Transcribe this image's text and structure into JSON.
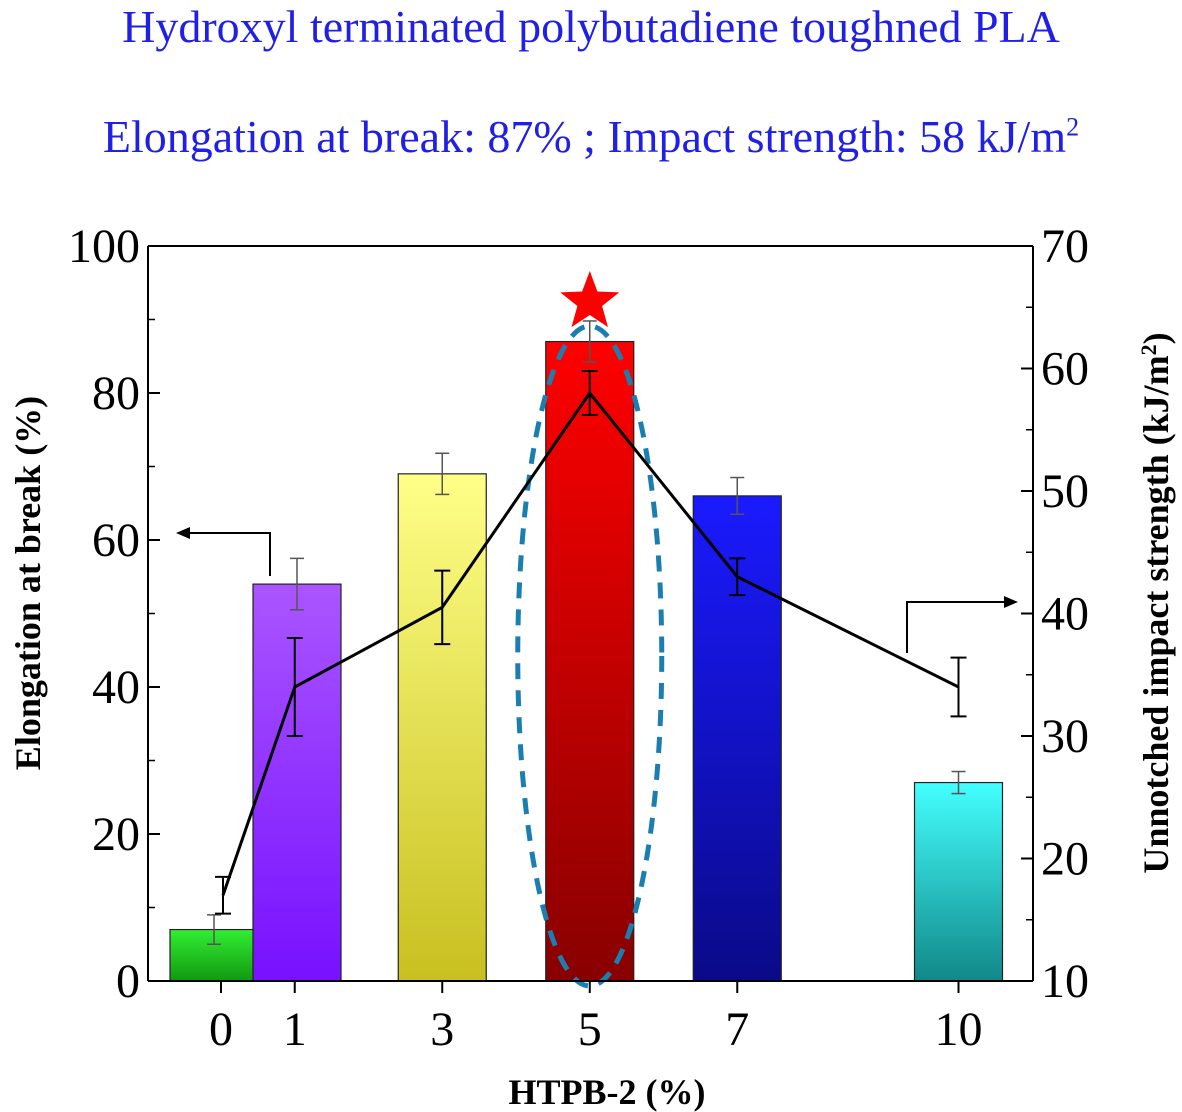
{
  "header": {
    "title": "Hydroxyl terminated polybutadiene toughned PLA",
    "subtitle_main": "Elongation at break: 87% ; Impact strength: 58 kJ/m",
    "subtitle_sup": "2"
  },
  "chart_data": {
    "type": "bar",
    "title": "",
    "xlabel": "HTPB-2 (%)",
    "ylabel": "Elongation at break (%)",
    "y2label": "Unnotched impact strength (kJ/m",
    "y2label_sup": "2",
    "y2label_end": ")",
    "categories": [
      "0",
      "1",
      "3",
      "5",
      "7",
      "10"
    ],
    "x": [
      0,
      1,
      3,
      5,
      7,
      10
    ],
    "ylim": [
      0,
      100
    ],
    "y2lim": [
      10,
      70
    ],
    "yticks": [
      "0",
      "20",
      "40",
      "60",
      "80",
      "100"
    ],
    "y2ticks": [
      "10",
      "20",
      "30",
      "40",
      "50",
      "60",
      "70"
    ],
    "series": [
      {
        "axis": "left",
        "kind": "bar",
        "values": [
          7,
          54,
          69,
          87,
          66,
          27
        ],
        "errors": [
          2,
          3.5,
          2.8,
          2.8,
          2.5,
          1.5
        ]
      },
      {
        "axis": "right",
        "kind": "line",
        "values": [
          17,
          34,
          40.5,
          58,
          43,
          34
        ],
        "errors": [
          1.5,
          4,
          3,
          1.8,
          1.5,
          2.4
        ]
      }
    ],
    "bar_colors": [
      [
        "#33ee33",
        "#119911"
      ],
      [
        "#aa55ff",
        "#7711ff"
      ],
      [
        "#ffff88",
        "#c8c020"
      ],
      [
        "#ff0000",
        "#880000"
      ],
      [
        "#1a1aff",
        "#0a0a88"
      ],
      [
        "#44ffff",
        "#118888"
      ]
    ],
    "annotation": {
      "type": "star",
      "color": "#ff0000",
      "target_index": 3
    },
    "highlight": {
      "type": "dashed-ellipse",
      "color": "#1a7fb0",
      "target_index": 3
    }
  }
}
